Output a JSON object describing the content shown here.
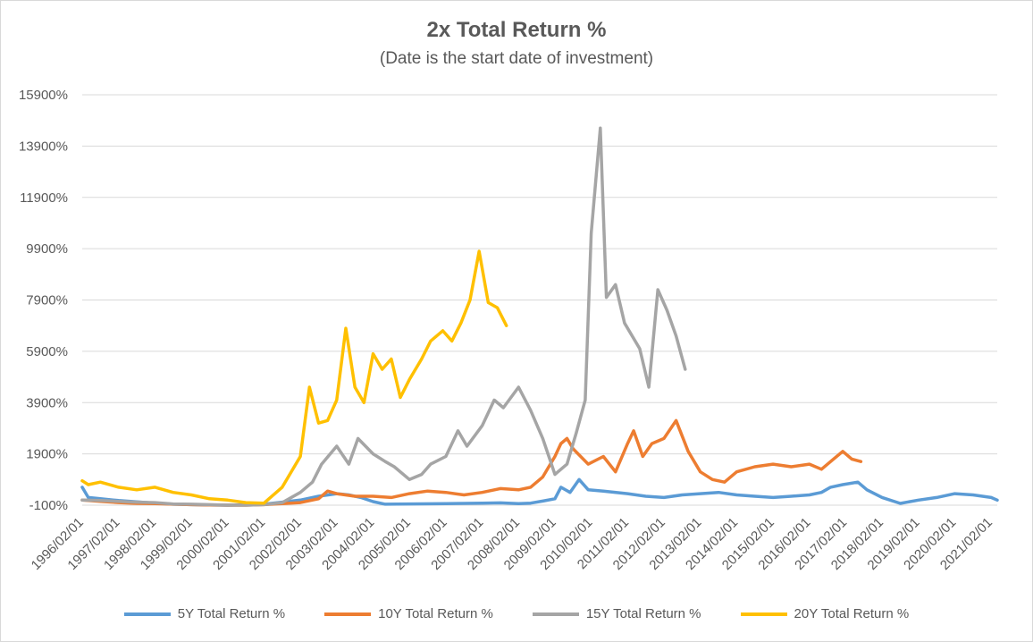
{
  "chart_data": {
    "type": "line",
    "title": "2x Total Return %",
    "subtitle": "(Date is the start date of investment)",
    "xlabel": "",
    "ylabel": "",
    "ylim": [
      -100,
      15900
    ],
    "yticks": [
      "-100%",
      "1900%",
      "3900%",
      "5900%",
      "7900%",
      "9900%",
      "11900%",
      "13900%",
      "15900%"
    ],
    "x_range": [
      "1996/02/01",
      "2021/04/01"
    ],
    "xticks": [
      "1996/02/01",
      "1997/02/01",
      "1998/02/01",
      "1999/02/01",
      "2000/02/01",
      "2001/02/01",
      "2002/02/01",
      "2003/02/01",
      "2004/02/01",
      "2005/02/01",
      "2006/02/01",
      "2007/02/01",
      "2008/02/01",
      "2009/02/01",
      "2010/02/01",
      "2011/02/01",
      "2012/02/01",
      "2013/02/01",
      "2014/02/01",
      "2015/02/01",
      "2016/02/01",
      "2017/02/01",
      "2018/02/01",
      "2019/02/01",
      "2020/02/01",
      "2021/02/01"
    ],
    "grid": true,
    "legend_position": "bottom",
    "series": [
      {
        "name": "5Y Total Return %",
        "color": "#5b9bd5",
        "points": [
          [
            "1996/02/01",
            600
          ],
          [
            "1996/04/01",
            200
          ],
          [
            "1996/08/01",
            150
          ],
          [
            "1997/02/01",
            80
          ],
          [
            "1997/08/01",
            30
          ],
          [
            "1998/02/01",
            -20
          ],
          [
            "1998/08/01",
            -60
          ],
          [
            "1999/02/01",
            -80
          ],
          [
            "1999/08/01",
            -90
          ],
          [
            "2000/02/01",
            -100
          ],
          [
            "2001/02/01",
            -60
          ],
          [
            "2001/08/01",
            20
          ],
          [
            "2002/02/01",
            100
          ],
          [
            "2002/08/01",
            250
          ],
          [
            "2003/02/01",
            350
          ],
          [
            "2003/06/01",
            300
          ],
          [
            "2003/10/01",
            200
          ],
          [
            "2004/02/01",
            40
          ],
          [
            "2004/06/01",
            -60
          ],
          [
            "2005/02/01",
            -50
          ],
          [
            "2006/02/01",
            -40
          ],
          [
            "2006/08/01",
            -30
          ],
          [
            "2007/02/01",
            -20
          ],
          [
            "2007/08/01",
            -10
          ],
          [
            "2008/02/01",
            -40
          ],
          [
            "2008/06/01",
            -20
          ],
          [
            "2008/10/01",
            60
          ],
          [
            "2009/02/01",
            150
          ],
          [
            "2009/04/01",
            600
          ],
          [
            "2009/07/01",
            400
          ],
          [
            "2009/10/01",
            900
          ],
          [
            "2010/01/01",
            500
          ],
          [
            "2010/06/01",
            450
          ],
          [
            "2011/02/01",
            350
          ],
          [
            "2011/08/01",
            250
          ],
          [
            "2012/02/01",
            200
          ],
          [
            "2012/08/01",
            300
          ],
          [
            "2013/02/01",
            350
          ],
          [
            "2013/08/01",
            400
          ],
          [
            "2014/02/01",
            300
          ],
          [
            "2014/08/01",
            250
          ],
          [
            "2015/02/01",
            200
          ],
          [
            "2015/08/01",
            250
          ],
          [
            "2016/02/01",
            300
          ],
          [
            "2016/06/01",
            400
          ],
          [
            "2016/09/01",
            600
          ],
          [
            "2017/01/01",
            700
          ],
          [
            "2017/06/01",
            800
          ],
          [
            "2017/09/01",
            500
          ],
          [
            "2018/02/01",
            200
          ],
          [
            "2018/08/01",
            -30
          ],
          [
            "2019/02/01",
            100
          ],
          [
            "2019/08/01",
            200
          ],
          [
            "2020/02/01",
            350
          ],
          [
            "2020/08/01",
            300
          ],
          [
            "2021/02/01",
            200
          ],
          [
            "2021/04/01",
            100
          ]
        ]
      },
      {
        "name": "10Y Total Return %",
        "color": "#ed7d31",
        "points": [
          [
            "1996/02/01",
            100
          ],
          [
            "1996/08/01",
            50
          ],
          [
            "1997/02/01",
            0
          ],
          [
            "1997/08/01",
            -30
          ],
          [
            "1998/02/01",
            -40
          ],
          [
            "1998/08/01",
            -60
          ],
          [
            "1999/02/01",
            -80
          ],
          [
            "1999/08/01",
            -90
          ],
          [
            "2000/02/01",
            -100
          ],
          [
            "2000/08/01",
            -100
          ],
          [
            "2001/02/01",
            -80
          ],
          [
            "2001/08/01",
            -40
          ],
          [
            "2002/02/01",
            0
          ],
          [
            "2002/08/01",
            150
          ],
          [
            "2002/11/01",
            450
          ],
          [
            "2003/02/01",
            350
          ],
          [
            "2003/08/01",
            250
          ],
          [
            "2004/02/01",
            250
          ],
          [
            "2004/08/01",
            200
          ],
          [
            "2005/02/01",
            350
          ],
          [
            "2005/08/01",
            450
          ],
          [
            "2006/02/01",
            400
          ],
          [
            "2006/08/01",
            300
          ],
          [
            "2007/02/01",
            400
          ],
          [
            "2007/08/01",
            550
          ],
          [
            "2008/02/01",
            500
          ],
          [
            "2008/06/01",
            600
          ],
          [
            "2008/10/01",
            1000
          ],
          [
            "2009/02/01",
            1800
          ],
          [
            "2009/04/01",
            2300
          ],
          [
            "2009/06/01",
            2500
          ],
          [
            "2009/08/01",
            2100
          ],
          [
            "2010/01/01",
            1500
          ],
          [
            "2010/06/01",
            1800
          ],
          [
            "2010/10/01",
            1200
          ],
          [
            "2011/02/01",
            2300
          ],
          [
            "2011/04/01",
            2800
          ],
          [
            "2011/07/01",
            1800
          ],
          [
            "2011/10/01",
            2300
          ],
          [
            "2012/02/01",
            2500
          ],
          [
            "2012/06/01",
            3200
          ],
          [
            "2012/10/01",
            2000
          ],
          [
            "2013/02/01",
            1200
          ],
          [
            "2013/06/01",
            900
          ],
          [
            "2013/10/01",
            800
          ],
          [
            "2014/02/01",
            1200
          ],
          [
            "2014/08/01",
            1400
          ],
          [
            "2015/02/01",
            1500
          ],
          [
            "2015/08/01",
            1400
          ],
          [
            "2016/02/01",
            1500
          ],
          [
            "2016/06/01",
            1300
          ],
          [
            "2016/09/01",
            1600
          ],
          [
            "2017/01/01",
            2000
          ],
          [
            "2017/04/01",
            1700
          ],
          [
            "2017/07/01",
            1600
          ]
        ]
      },
      {
        "name": "15Y Total Return %",
        "color": "#a5a5a5",
        "points": [
          [
            "1996/02/01",
            100
          ],
          [
            "1996/08/01",
            80
          ],
          [
            "1997/02/01",
            50
          ],
          [
            "1997/08/01",
            20
          ],
          [
            "1998/02/01",
            0
          ],
          [
            "1998/08/01",
            -50
          ],
          [
            "1999/02/01",
            -60
          ],
          [
            "1999/08/01",
            -80
          ],
          [
            "2000/02/01",
            -100
          ],
          [
            "2000/08/01",
            -100
          ],
          [
            "2001/02/01",
            -80
          ],
          [
            "2001/08/01",
            0
          ],
          [
            "2002/02/01",
            400
          ],
          [
            "2002/06/01",
            800
          ],
          [
            "2002/09/01",
            1500
          ],
          [
            "2003/02/01",
            2200
          ],
          [
            "2003/06/01",
            1500
          ],
          [
            "2003/09/01",
            2500
          ],
          [
            "2004/02/01",
            1900
          ],
          [
            "2004/06/01",
            1600
          ],
          [
            "2004/09/01",
            1400
          ],
          [
            "2005/02/01",
            900
          ],
          [
            "2005/06/01",
            1100
          ],
          [
            "2005/09/01",
            1500
          ],
          [
            "2006/02/01",
            1800
          ],
          [
            "2006/06/01",
            2800
          ],
          [
            "2006/09/01",
            2200
          ],
          [
            "2007/02/01",
            3000
          ],
          [
            "2007/06/01",
            4000
          ],
          [
            "2007/09/01",
            3700
          ],
          [
            "2008/02/01",
            4500
          ],
          [
            "2008/06/01",
            3600
          ],
          [
            "2008/10/01",
            2500
          ],
          [
            "2009/02/01",
            1100
          ],
          [
            "2009/06/01",
            1500
          ],
          [
            "2009/09/01",
            2700
          ],
          [
            "2009/12/01",
            4000
          ],
          [
            "2010/02/01",
            10500
          ],
          [
            "2010/05/01",
            14600
          ],
          [
            "2010/07/01",
            8000
          ],
          [
            "2010/10/01",
            8500
          ],
          [
            "2011/01/01",
            7000
          ],
          [
            "2011/06/01",
            6000
          ],
          [
            "2011/09/01",
            4500
          ],
          [
            "2011/12/01",
            8300
          ],
          [
            "2012/03/01",
            7500
          ],
          [
            "2012/06/01",
            6500
          ],
          [
            "2012/09/01",
            5200
          ]
        ]
      },
      {
        "name": "20Y Total Return %",
        "color": "#ffc000",
        "points": [
          [
            "1996/02/01",
            850
          ],
          [
            "1996/04/01",
            700
          ],
          [
            "1996/08/01",
            800
          ],
          [
            "1997/02/01",
            600
          ],
          [
            "1997/08/01",
            500
          ],
          [
            "1998/02/01",
            600
          ],
          [
            "1998/08/01",
            400
          ],
          [
            "1999/02/01",
            300
          ],
          [
            "1999/08/01",
            150
          ],
          [
            "2000/02/01",
            100
          ],
          [
            "2000/08/01",
            0
          ],
          [
            "2001/02/01",
            -20
          ],
          [
            "2001/08/01",
            600
          ],
          [
            "2002/02/01",
            1800
          ],
          [
            "2002/05/01",
            4500
          ],
          [
            "2002/08/01",
            3100
          ],
          [
            "2002/11/01",
            3200
          ],
          [
            "2003/02/01",
            4000
          ],
          [
            "2003/05/01",
            6800
          ],
          [
            "2003/08/01",
            4500
          ],
          [
            "2003/11/01",
            3900
          ],
          [
            "2004/02/01",
            5800
          ],
          [
            "2004/05/01",
            5200
          ],
          [
            "2004/08/01",
            5600
          ],
          [
            "2004/11/01",
            4100
          ],
          [
            "2005/02/01",
            4800
          ],
          [
            "2005/06/01",
            5600
          ],
          [
            "2005/09/01",
            6300
          ],
          [
            "2006/01/01",
            6700
          ],
          [
            "2006/04/01",
            6300
          ],
          [
            "2006/07/01",
            7000
          ],
          [
            "2006/10/01",
            7900
          ],
          [
            "2007/01/01",
            9800
          ],
          [
            "2007/04/01",
            7800
          ],
          [
            "2007/07/01",
            7600
          ],
          [
            "2007/10/01",
            6900
          ]
        ]
      }
    ]
  }
}
